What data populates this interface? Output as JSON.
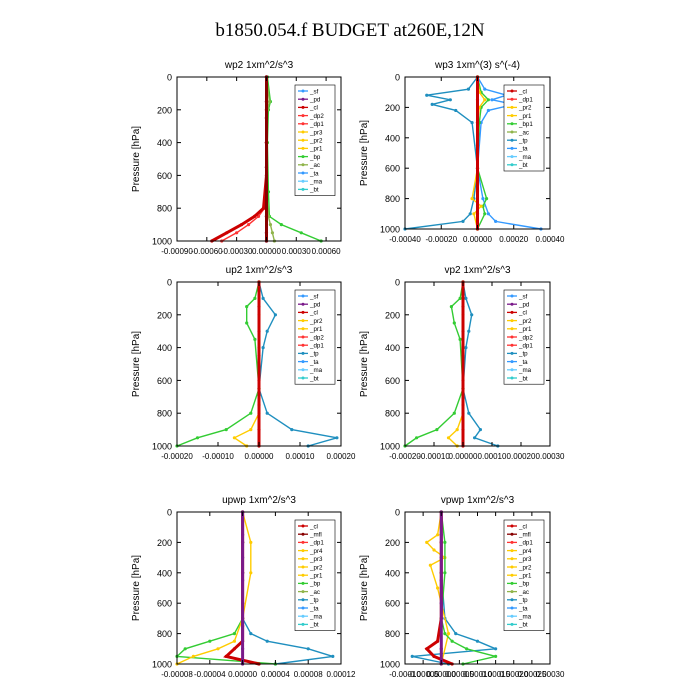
{
  "title": "b1850.054.f  BUDGET at260E,12N",
  "colors": {
    "sf": "#3399ff",
    "pd": "#7a1a8a",
    "cl": "#cc0000",
    "mfl": "#880000",
    "ac": "#8fb44a",
    "dp": "#ff3333",
    "pr": "#ffcc00",
    "bp": "#33cc33",
    "tp": "#1f8fbf",
    "ta": "#3399ff",
    "ma": "#66ccff",
    "bt": "#33cccc"
  },
  "chart_data": [
    {
      "type": "line",
      "title": "wp2   1xm^2/s^3",
      "ylabel": "Pressure [hPa]",
      "ylim": [
        1000,
        0
      ],
      "yticks": [
        "0",
        "200",
        "400",
        "600",
        "800",
        "1000"
      ],
      "xlim": [
        -0.0009,
        0.00075
      ],
      "xticks": [
        "-0.00090",
        "-0.00060",
        "-0.00030",
        "0.00000",
        "0.00030",
        "0.00060"
      ],
      "xtick_vals": [
        -0.0009,
        -0.0006,
        -0.0003,
        0,
        0.0003,
        0.0006
      ],
      "legend": [
        "_sf",
        "_pd",
        "_cl",
        "_dp2",
        "_dp1",
        "_pr3",
        "_pr2",
        "_pr1",
        "_bp",
        "_ac",
        "_ta",
        "_ma",
        "_bt"
      ],
      "series": [
        {
          "name": "_bp",
          "ckey": "bp",
          "x": [
            1e-05,
            4e-05,
            2e-05,
            1e-05,
            2e-05,
            3e-05,
            0.00015,
            0.00035,
            0.00055
          ],
          "y": [
            0,
            150,
            200,
            400,
            700,
            850,
            900,
            950,
            1000
          ]
        },
        {
          "name": "_ac",
          "ckey": "ac",
          "x": [
            0,
            3e-05,
            1e-05,
            0,
            0,
            2e-05,
            4e-05,
            6e-05,
            8e-05
          ],
          "y": [
            0,
            150,
            200,
            400,
            700,
            850,
            900,
            950,
            1000
          ]
        },
        {
          "name": "_dp1",
          "ckey": "dp",
          "x": [
            0,
            0,
            0,
            0,
            -2e-05,
            -8e-05,
            -0.00018,
            -0.0003,
            -0.00045
          ],
          "y": [
            0,
            200,
            400,
            600,
            800,
            850,
            900,
            950,
            1000
          ]
        },
        {
          "name": "_dp2",
          "ckey": "cl",
          "x": [
            0,
            0,
            0,
            0,
            -3e-05,
            -0.00012,
            -0.00025,
            -0.0004,
            -0.00055
          ],
          "y": [
            0,
            200,
            400,
            600,
            800,
            850,
            900,
            950,
            1000
          ]
        },
        {
          "name": "_pd",
          "ckey": "pd",
          "x": [
            0,
            0,
            0,
            0,
            0,
            0,
            0,
            0,
            0
          ],
          "y": [
            0,
            150,
            250,
            400,
            550,
            700,
            850,
            950,
            1000
          ]
        },
        {
          "name": "_bt",
          "ckey": "mfl",
          "x": [
            0,
            0,
            0,
            0,
            0,
            0,
            0,
            0,
            0
          ],
          "y": [
            0,
            150,
            250,
            400,
            550,
            700,
            850,
            950,
            1000
          ]
        }
      ]
    },
    {
      "type": "line",
      "title": "wp3   1xm^(3) s^(-4)",
      "ylabel": "Pressure [hPa]",
      "ylim": [
        1000,
        0
      ],
      "yticks": [
        "0",
        "200",
        "400",
        "600",
        "800",
        "1000"
      ],
      "xlim": [
        -0.0004,
        0.0004
      ],
      "xticks": [
        "-0.00040",
        "-0.00020",
        "0.00000",
        "0.00020",
        "0.00040"
      ],
      "xtick_vals": [
        -0.0004,
        -0.0002,
        0,
        0.0002,
        0.0004
      ],
      "legend": [
        "_cl",
        "_dp1",
        "_pr2",
        "_pr1",
        "_bp1",
        "_ac",
        "_tp",
        "_ta",
        "_ma",
        "_bt"
      ],
      "series": [
        {
          "name": "_tp",
          "ckey": "tp",
          "x": [
            0,
            -5e-05,
            -0.00028,
            -0.00015,
            -0.00025,
            -0.00012,
            -3e-05,
            0,
            -2e-05,
            -4e-05,
            -8e-05,
            -0.0004
          ],
          "y": [
            0,
            80,
            120,
            150,
            180,
            220,
            300,
            600,
            800,
            900,
            950,
            1000
          ]
        },
        {
          "name": "_ta",
          "ckey": "ta",
          "x": [
            0,
            4e-05,
            0.00016,
            8e-05,
            0.0002,
            6e-05,
            2e-05,
            0,
            3e-05,
            6e-05,
            0.0001,
            0.00035
          ],
          "y": [
            0,
            80,
            120,
            150,
            180,
            220,
            300,
            600,
            800,
            900,
            950,
            1000
          ]
        },
        {
          "name": "_bp1",
          "ckey": "bp",
          "x": [
            0,
            2e-05,
            6e-05,
            2e-05,
            1e-05,
            0,
            5e-05,
            3e-05,
            4e-05,
            0
          ],
          "y": [
            0,
            100,
            150,
            200,
            300,
            600,
            800,
            850,
            900,
            1000
          ]
        },
        {
          "name": "_pr1",
          "ckey": "pr",
          "x": [
            0,
            1e-05,
            4e-05,
            1e-05,
            0,
            0,
            -3e-05,
            2e-05,
            -2e-05,
            0
          ],
          "y": [
            0,
            100,
            150,
            200,
            300,
            600,
            800,
            850,
            900,
            1000
          ]
        },
        {
          "name": "_dp1",
          "ckey": "cl",
          "x": [
            0,
            0,
            0,
            0,
            0,
            0,
            0,
            0
          ],
          "y": [
            0,
            150,
            300,
            450,
            600,
            750,
            900,
            1000
          ]
        }
      ]
    },
    {
      "type": "line",
      "title": "up2   1xm^2/s^3",
      "ylabel": "Pressure [hPa]",
      "ylim": [
        1000,
        0
      ],
      "yticks": [
        "0",
        "200",
        "400",
        "600",
        "800",
        "1000"
      ],
      "xlim": [
        -0.0002,
        0.0002
      ],
      "xticks": [
        "-0.00020",
        "-0.00010",
        "0.00000",
        "0.00010",
        "0.00020"
      ],
      "xtick_vals": [
        -0.0002,
        -0.0001,
        0,
        0.0001,
        0.0002
      ],
      "legend": [
        "_sf",
        "_pd",
        "_cl",
        "_pr2",
        "_pr1",
        "_dp2",
        "_dp1",
        "_tp",
        "_ta",
        "_ma",
        "_bt"
      ],
      "series": [
        {
          "name": "_dp2",
          "ckey": "bp",
          "x": [
            0,
            -1e-05,
            -3e-05,
            -3e-05,
            -1e-05,
            0,
            -2e-05,
            -8e-05,
            -0.00015,
            -0.0002
          ],
          "y": [
            0,
            100,
            150,
            250,
            350,
            650,
            800,
            900,
            950,
            1000
          ]
        },
        {
          "name": "_tp",
          "ckey": "tp",
          "x": [
            0,
            1e-05,
            4e-05,
            2e-05,
            1e-05,
            0,
            2e-05,
            8e-05,
            0.00019,
            0.00012
          ],
          "y": [
            0,
            100,
            200,
            300,
            400,
            650,
            800,
            900,
            950,
            1000
          ]
        },
        {
          "name": "_pr1",
          "ckey": "pr",
          "x": [
            0,
            0,
            0,
            0,
            0,
            -2e-05,
            -6e-05,
            -3e-05
          ],
          "y": [
            0,
            200,
            400,
            650,
            800,
            900,
            950,
            1000
          ]
        },
        {
          "name": "_cl",
          "ckey": "cl",
          "x": [
            0,
            0,
            0,
            0,
            0,
            0,
            0,
            0
          ],
          "y": [
            0,
            150,
            300,
            450,
            600,
            750,
            900,
            1000
          ]
        }
      ]
    },
    {
      "type": "line",
      "title": "vp2   1xm^2/s^3",
      "ylabel": "Pressure [hPa]",
      "ylim": [
        1000,
        0
      ],
      "yticks": [
        "0",
        "200",
        "400",
        "600",
        "800",
        "1000"
      ],
      "xlim": [
        -0.0002,
        0.0003
      ],
      "xticks": [
        "-0.00020",
        "-0.00010",
        "0.00000",
        "0.00010",
        "0.00020",
        "0.00030"
      ],
      "xtick_vals": [
        -0.0002,
        -0.0001,
        0,
        0.0001,
        0.0002,
        0.0003
      ],
      "legend": [
        "_sf",
        "_pd",
        "_cl",
        "_pr2",
        "_pr1",
        "_dp2",
        "_dp1",
        "_tp",
        "_ta",
        "_ma",
        "_bt"
      ],
      "series": [
        {
          "name": "_dp2",
          "ckey": "bp",
          "x": [
            0,
            -1e-05,
            -4e-05,
            -3e-05,
            -1e-05,
            0,
            -3e-05,
            -9e-05,
            -0.00016,
            -0.0002
          ],
          "y": [
            0,
            100,
            150,
            250,
            350,
            650,
            800,
            900,
            950,
            1000
          ]
        },
        {
          "name": "_tp",
          "ckey": "tp",
          "x": [
            0,
            1e-05,
            3e-05,
            2e-05,
            1e-05,
            0,
            2e-05,
            6e-05,
            4e-05,
            0.00012
          ],
          "y": [
            0,
            100,
            200,
            300,
            400,
            650,
            800,
            900,
            950,
            1000
          ]
        },
        {
          "name": "_pr1",
          "ckey": "pr",
          "x": [
            0,
            0,
            0,
            0,
            0,
            -2e-05,
            -5e-05,
            -2e-05
          ],
          "y": [
            0,
            200,
            400,
            650,
            800,
            900,
            950,
            1000
          ]
        },
        {
          "name": "_cl",
          "ckey": "cl",
          "x": [
            0,
            0,
            0,
            0,
            0,
            0,
            0,
            0
          ],
          "y": [
            0,
            150,
            300,
            450,
            600,
            750,
            900,
            1000
          ]
        }
      ]
    },
    {
      "type": "line",
      "title": "upwp   1xm^2/s^3",
      "ylabel": "Pressure [hPa]",
      "ylim": [
        1000,
        0
      ],
      "yticks": [
        "0",
        "200",
        "400",
        "600",
        "800",
        "1000"
      ],
      "xlim": [
        -8e-05,
        0.00012
      ],
      "xticks": [
        "-0.00008",
        "-0.00004",
        "0.00000",
        "0.00004",
        "0.00008",
        "0.00012"
      ],
      "xtick_vals": [
        -8e-05,
        -4e-05,
        0,
        4e-05,
        8e-05,
        0.00012
      ],
      "legend": [
        "_cl",
        "_mfl",
        "_dp1",
        "_pr4",
        "_pr3",
        "_pr2",
        "_pr1",
        "_bp",
        "_ac",
        "_tp",
        "_ta",
        "_ma",
        "_bt"
      ],
      "series": [
        {
          "name": "_tp",
          "ckey": "tp",
          "x": [
            0,
            0,
            0,
            0,
            1e-05,
            3e-05,
            8e-05,
            0.00011,
            4e-05
          ],
          "y": [
            0,
            200,
            400,
            700,
            800,
            850,
            900,
            950,
            1000
          ]
        },
        {
          "name": "_bp",
          "ckey": "bp",
          "x": [
            0,
            0,
            0,
            0,
            -1e-05,
            -4e-05,
            -7e-05,
            -8e-05,
            4e-05
          ],
          "y": [
            0,
            200,
            400,
            700,
            800,
            850,
            900,
            950,
            1000
          ]
        },
        {
          "name": "_pr1",
          "ckey": "pr",
          "x": [
            0,
            1e-05,
            1e-05,
            0,
            -1e-05,
            -3e-05,
            -6e-05,
            -8e-05
          ],
          "y": [
            0,
            200,
            400,
            700,
            850,
            900,
            950,
            1000
          ]
        },
        {
          "name": "_dp1",
          "ckey": "cl",
          "x": [
            0,
            0,
            0,
            0,
            0,
            -1e-05,
            -2e-05,
            2e-05
          ],
          "y": [
            0,
            200,
            400,
            700,
            850,
            900,
            950,
            1000
          ]
        },
        {
          "name": "_mfl",
          "ckey": "pd",
          "x": [
            0,
            0,
            0,
            0,
            0,
            0,
            0,
            0
          ],
          "y": [
            0,
            150,
            300,
            450,
            600,
            750,
            900,
            1000
          ]
        }
      ]
    },
    {
      "type": "line",
      "title": "vpwp   1xm^2/s^3",
      "ylabel": "Pressure [hPa]",
      "ylim": [
        1000,
        0
      ],
      "yticks": [
        "0",
        "200",
        "400",
        "600",
        "800",
        "1000"
      ],
      "xlim": [
        -0.0001,
        0.0003
      ],
      "xticks": [
        "-0.00010",
        "-0.00005",
        "0.00000",
        "0.00005",
        "0.00010",
        "0.00015",
        "0.00020",
        "0.00025",
        "0.00030"
      ],
      "xtick_vals": [
        -0.0001,
        -5e-05,
        0,
        5e-05,
        0.0001,
        0.00015,
        0.0002,
        0.00025,
        0.0003
      ],
      "legend": [
        "_cl",
        "_mfl",
        "_dp1",
        "_pr4",
        "_pr3",
        "_pr2",
        "_pr1",
        "_bp",
        "_ac",
        "_tp",
        "_ta",
        "_ma",
        "_bt"
      ],
      "series": [
        {
          "name": "_tp",
          "ckey": "tp",
          "x": [
            0,
            0,
            0,
            1e-05,
            4e-05,
            0.0001,
            0.00015,
            -8e-05,
            2e-05
          ],
          "y": [
            0,
            200,
            400,
            700,
            800,
            850,
            900,
            950,
            1000
          ]
        },
        {
          "name": "_pr1",
          "ckey": "pr",
          "x": [
            0,
            -1e-05,
            -4e-05,
            -2e-05,
            1e-05,
            -3e-05,
            -1e-05,
            2e-05,
            0
          ],
          "y": [
            0,
            150,
            200,
            250,
            300,
            350,
            500,
            800,
            1000
          ]
        },
        {
          "name": "_bp",
          "ckey": "bp",
          "x": [
            0,
            1e-05,
            1e-05,
            0,
            1e-05,
            3e-05,
            7e-05,
            0.00015,
            6e-05
          ],
          "y": [
            0,
            200,
            400,
            700,
            800,
            850,
            900,
            950,
            1000
          ]
        },
        {
          "name": "_dp1",
          "ckey": "cl",
          "x": [
            0,
            0,
            0,
            0,
            -1e-05,
            -4e-05,
            -2e-05,
            3e-05
          ],
          "y": [
            0,
            200,
            400,
            700,
            850,
            900,
            950,
            1000
          ]
        },
        {
          "name": "_mfl",
          "ckey": "pd",
          "x": [
            0,
            0,
            0,
            0,
            0,
            0,
            0,
            0
          ],
          "y": [
            0,
            150,
            300,
            450,
            600,
            750,
            900,
            1000
          ]
        }
      ]
    }
  ]
}
